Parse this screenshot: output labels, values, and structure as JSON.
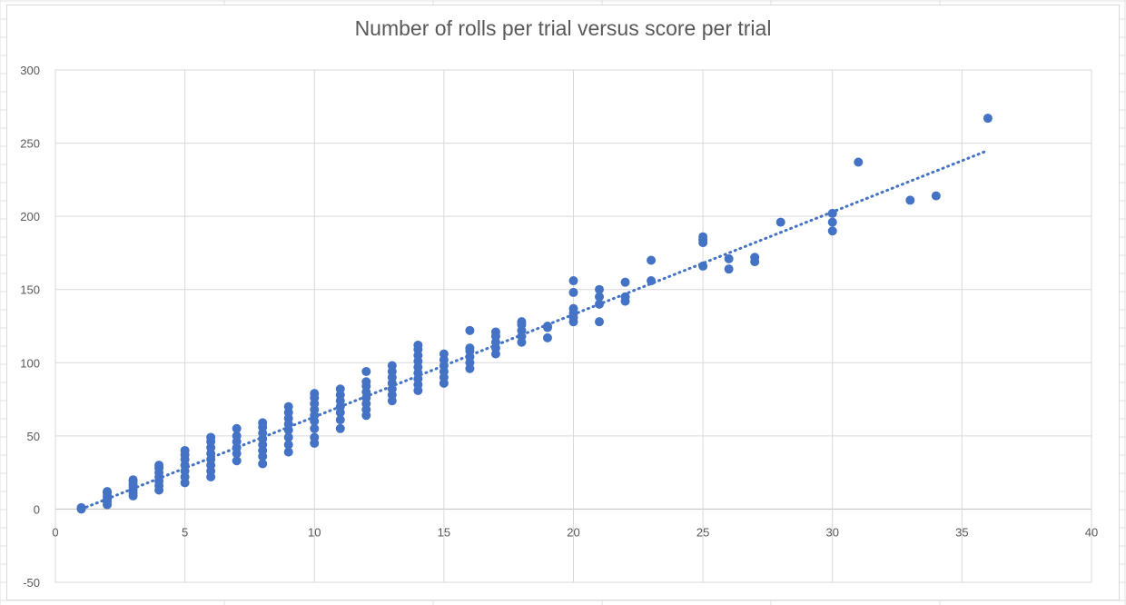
{
  "chart_data": {
    "type": "scatter",
    "title": "Number of rolls per trial versus score per trial",
    "xlabel": "",
    "ylabel": "",
    "xlim": [
      0,
      40
    ],
    "ylim": [
      -50,
      300
    ],
    "x_ticks": [
      0,
      5,
      10,
      15,
      20,
      25,
      30,
      35,
      40
    ],
    "y_ticks": [
      -50,
      0,
      50,
      100,
      150,
      200,
      250,
      300
    ],
    "grid": true,
    "marker_color": "#4472c4",
    "trendline": {
      "type": "linear",
      "style": "dotted",
      "color": "#4472c4",
      "x": [
        1,
        36
      ],
      "y": [
        0,
        245
      ]
    },
    "points": [
      [
        1,
        0
      ],
      [
        1,
        1
      ],
      [
        2,
        3
      ],
      [
        2,
        5
      ],
      [
        2,
        7
      ],
      [
        2,
        9
      ],
      [
        2,
        11
      ],
      [
        2,
        12
      ],
      [
        3,
        9
      ],
      [
        3,
        11
      ],
      [
        3,
        13
      ],
      [
        3,
        15
      ],
      [
        3,
        17
      ],
      [
        3,
        19
      ],
      [
        3,
        20
      ],
      [
        4,
        13
      ],
      [
        4,
        16
      ],
      [
        4,
        19
      ],
      [
        4,
        22
      ],
      [
        4,
        25
      ],
      [
        4,
        28
      ],
      [
        4,
        30
      ],
      [
        5,
        18
      ],
      [
        5,
        22
      ],
      [
        5,
        26
      ],
      [
        5,
        30
      ],
      [
        5,
        34
      ],
      [
        5,
        37
      ],
      [
        5,
        40
      ],
      [
        6,
        22
      ],
      [
        6,
        26
      ],
      [
        6,
        30
      ],
      [
        6,
        34
      ],
      [
        6,
        38
      ],
      [
        6,
        42
      ],
      [
        6,
        46
      ],
      [
        6,
        49
      ],
      [
        7,
        33
      ],
      [
        7,
        38
      ],
      [
        7,
        42
      ],
      [
        7,
        46
      ],
      [
        7,
        50
      ],
      [
        7,
        55
      ],
      [
        8,
        31
      ],
      [
        8,
        36
      ],
      [
        8,
        40
      ],
      [
        8,
        44
      ],
      [
        8,
        48
      ],
      [
        8,
        52
      ],
      [
        8,
        56
      ],
      [
        8,
        59
      ],
      [
        9,
        39
      ],
      [
        9,
        44
      ],
      [
        9,
        49
      ],
      [
        9,
        54
      ],
      [
        9,
        58
      ],
      [
        9,
        62
      ],
      [
        9,
        66
      ],
      [
        9,
        70
      ],
      [
        10,
        45
      ],
      [
        10,
        49
      ],
      [
        10,
        55
      ],
      [
        10,
        60
      ],
      [
        10,
        64
      ],
      [
        10,
        68
      ],
      [
        10,
        72
      ],
      [
        10,
        76
      ],
      [
        10,
        79
      ],
      [
        11,
        55
      ],
      [
        11,
        61
      ],
      [
        11,
        66
      ],
      [
        11,
        70
      ],
      [
        11,
        74
      ],
      [
        11,
        78
      ],
      [
        11,
        82
      ],
      [
        12,
        64
      ],
      [
        12,
        68
      ],
      [
        12,
        72
      ],
      [
        12,
        76
      ],
      [
        12,
        80
      ],
      [
        12,
        84
      ],
      [
        12,
        87
      ],
      [
        12,
        94
      ],
      [
        13,
        74
      ],
      [
        13,
        78
      ],
      [
        13,
        82
      ],
      [
        13,
        86
      ],
      [
        13,
        90
      ],
      [
        13,
        94
      ],
      [
        13,
        98
      ],
      [
        14,
        81
      ],
      [
        14,
        85
      ],
      [
        14,
        89
      ],
      [
        14,
        93
      ],
      [
        14,
        97
      ],
      [
        14,
        101
      ],
      [
        14,
        105
      ],
      [
        14,
        109
      ],
      [
        14,
        112
      ],
      [
        15,
        86
      ],
      [
        15,
        90
      ],
      [
        15,
        94
      ],
      [
        15,
        98
      ],
      [
        15,
        102
      ],
      [
        15,
        106
      ],
      [
        16,
        96
      ],
      [
        16,
        100
      ],
      [
        16,
        104
      ],
      [
        16,
        108
      ],
      [
        16,
        110
      ],
      [
        16,
        122
      ],
      [
        17,
        106
      ],
      [
        17,
        110
      ],
      [
        17,
        114
      ],
      [
        17,
        118
      ],
      [
        17,
        121
      ],
      [
        18,
        114
      ],
      [
        18,
        118
      ],
      [
        18,
        122
      ],
      [
        18,
        126
      ],
      [
        18,
        128
      ],
      [
        19,
        117
      ],
      [
        19,
        124
      ],
      [
        19,
        125
      ],
      [
        20,
        128
      ],
      [
        20,
        131
      ],
      [
        20,
        134
      ],
      [
        20,
        137
      ],
      [
        20,
        148
      ],
      [
        20,
        156
      ],
      [
        21,
        128
      ],
      [
        21,
        140
      ],
      [
        21,
        145
      ],
      [
        21,
        150
      ],
      [
        22,
        142
      ],
      [
        22,
        145
      ],
      [
        22,
        155
      ],
      [
        23,
        156
      ],
      [
        23,
        170
      ],
      [
        25,
        166
      ],
      [
        25,
        182
      ],
      [
        25,
        184
      ],
      [
        25,
        186
      ],
      [
        26,
        164
      ],
      [
        26,
        171
      ],
      [
        27,
        169
      ],
      [
        27,
        172
      ],
      [
        28,
        196
      ],
      [
        30,
        190
      ],
      [
        30,
        196
      ],
      [
        30,
        202
      ],
      [
        31,
        237
      ],
      [
        33,
        211
      ],
      [
        34,
        214
      ],
      [
        36,
        267
      ]
    ]
  }
}
